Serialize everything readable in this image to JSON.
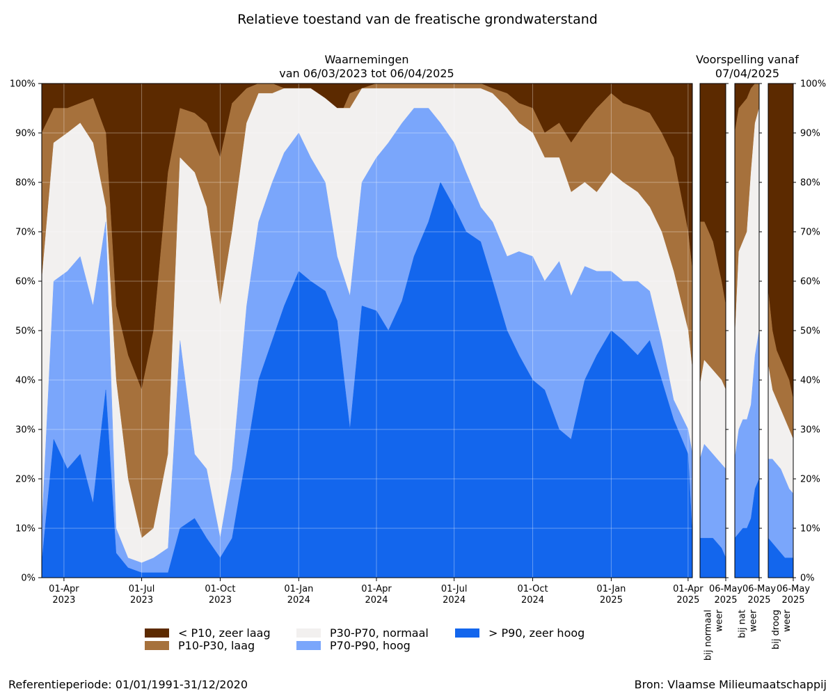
{
  "figure": {
    "title": "Relatieve toestand van de freatische grondwaterstand",
    "footer_left": "Referentieperiode: 01/01/1991-31/12/2020",
    "footer_right": "Bron: Vlaamse Milieumaatschappij"
  },
  "colors": {
    "zeer_laag": "#5c2a00",
    "laag": "#a6713c",
    "normaal": "#f2f0ef",
    "hoog": "#7aa6fb",
    "zeer_hoog": "#1366ed"
  },
  "legend": [
    {
      "key": "zeer_laag",
      "label": "< P10, zeer laag"
    },
    {
      "key": "laag",
      "label": "P10-P30, laag"
    },
    {
      "key": "normaal",
      "label": "P30-P70, normaal"
    },
    {
      "key": "hoog",
      "label": "P70-P90, hoog"
    },
    {
      "key": "zeer_hoog",
      "label": "> P90, zeer hoog"
    }
  ],
  "chart_data": [
    {
      "type": "area",
      "stacked": true,
      "subtitle_line1": "Waarnemingen",
      "subtitle_line2": "van 06/03/2023 tot 06/04/2025",
      "x_start": "2023-03-06",
      "x_end": "2025-04-06",
      "ylim": [
        0,
        100
      ],
      "y_ticks": [
        "0%",
        "10%",
        "20%",
        "30%",
        "40%",
        "50%",
        "60%",
        "70%",
        "80%",
        "90%",
        "100%"
      ],
      "x_ticks": [
        {
          "date": "2023-04-01",
          "line1": "01-Apr",
          "line2": "2023"
        },
        {
          "date": "2023-07-01",
          "line1": "01-Jul",
          "line2": "2023"
        },
        {
          "date": "2023-10-01",
          "line1": "01-Oct",
          "line2": "2023"
        },
        {
          "date": "2024-01-01",
          "line1": "01-Jan",
          "line2": "2024"
        },
        {
          "date": "2024-04-01",
          "line1": "01-Apr",
          "line2": "2024"
        },
        {
          "date": "2024-07-01",
          "line1": "01-Jul",
          "line2": "2024"
        },
        {
          "date": "2024-10-01",
          "line1": "01-Oct",
          "line2": "2024"
        },
        {
          "date": "2025-01-01",
          "line1": "01-Jan",
          "line2": "2025"
        },
        {
          "date": "2025-04-01",
          "line1": "01-Apr",
          "line2": "2025"
        }
      ],
      "grid": true,
      "series_keys": [
        "zeer_hoog",
        "hoog",
        "normaal",
        "laag",
        "zeer_laag"
      ],
      "cumulative_note": "values are cumulative percentages from bottom: >P90, +P70-P90, +P30-P70, +P10-P30 (remainder to 100 is <P10)",
      "dates": [
        "2023-03-06",
        "2023-03-20",
        "2023-04-05",
        "2023-04-20",
        "2023-05-05",
        "2023-05-20",
        "2023-06-01",
        "2023-06-15",
        "2023-07-01",
        "2023-07-15",
        "2023-08-01",
        "2023-08-15",
        "2023-09-01",
        "2023-09-15",
        "2023-10-01",
        "2023-10-15",
        "2023-11-01",
        "2023-11-15",
        "2023-12-01",
        "2023-12-15",
        "2024-01-01",
        "2024-01-15",
        "2024-02-01",
        "2024-02-15",
        "2024-03-01",
        "2024-03-15",
        "2024-04-01",
        "2024-04-15",
        "2024-05-01",
        "2024-05-15",
        "2024-06-01",
        "2024-06-15",
        "2024-07-01",
        "2024-07-15",
        "2024-08-01",
        "2024-08-15",
        "2024-09-01",
        "2024-09-15",
        "2024-10-01",
        "2024-10-15",
        "2024-11-01",
        "2024-11-15",
        "2024-12-01",
        "2024-12-15",
        "2025-01-01",
        "2025-01-15",
        "2025-02-01",
        "2025-02-15",
        "2025-03-01",
        "2025-03-15",
        "2025-04-01",
        "2025-04-06"
      ],
      "cum_p90": [
        3,
        28,
        22,
        25,
        15,
        38,
        5,
        2,
        1,
        1,
        1,
        10,
        12,
        8,
        4,
        8,
        25,
        40,
        48,
        55,
        62,
        60,
        58,
        52,
        30,
        55,
        54,
        50,
        56,
        65,
        72,
        80,
        75,
        70,
        68,
        60,
        50,
        45,
        40,
        38,
        30,
        28,
        40,
        45,
        50,
        48,
        45,
        48,
        40,
        32,
        25,
        8
      ],
      "cum_p70": [
        10,
        60,
        62,
        65,
        55,
        72,
        10,
        4,
        3,
        4,
        6,
        48,
        25,
        22,
        8,
        22,
        55,
        72,
        80,
        86,
        90,
        85,
        80,
        65,
        57,
        80,
        85,
        88,
        92,
        95,
        95,
        92,
        88,
        82,
        75,
        72,
        65,
        66,
        65,
        60,
        64,
        57,
        63,
        62,
        62,
        60,
        60,
        58,
        48,
        36,
        30,
        25
      ],
      "cum_p30": [
        60,
        88,
        90,
        92,
        88,
        75,
        40,
        20,
        8,
        10,
        25,
        85,
        82,
        75,
        55,
        70,
        92,
        98,
        98,
        99,
        99,
        99,
        97,
        95,
        95,
        99,
        99,
        99,
        99,
        99,
        99,
        99,
        99,
        99,
        99,
        98,
        95,
        92,
        90,
        85,
        85,
        78,
        80,
        78,
        82,
        80,
        78,
        75,
        70,
        62,
        50,
        42
      ],
      "cum_p10": [
        90,
        95,
        95,
        96,
        97,
        90,
        55,
        45,
        38,
        50,
        82,
        95,
        94,
        92,
        85,
        96,
        99,
        100,
        100,
        99,
        98,
        98,
        97,
        92,
        98,
        99,
        100,
        100,
        100,
        100,
        100,
        100,
        100,
        100,
        100,
        99,
        98,
        96,
        95,
        90,
        92,
        88,
        92,
        95,
        98,
        96,
        95,
        94,
        90,
        85,
        70,
        62
      ]
    },
    {
      "type": "area",
      "stacked": true,
      "group_title_line1": "Voorspelling vanaf",
      "group_title_line2": "07/04/2025",
      "ylim": [
        0,
        100
      ],
      "panels": [
        {
          "name": "bij normaal weer",
          "x_tick_line1": "06-May",
          "x_tick_line2": "2025",
          "cum_p90": [
            8,
            8,
            8,
            8,
            7,
            6,
            4
          ],
          "cum_p70": [
            24,
            27,
            26,
            25,
            24,
            23,
            22
          ],
          "cum_p30": [
            39,
            44,
            43,
            42,
            41,
            40,
            38
          ],
          "cum_p10": [
            72,
            72,
            70,
            68,
            64,
            60,
            55
          ]
        },
        {
          "name": "bij nat weer",
          "x_tick_line1": "06-May",
          "x_tick_line2": "2025",
          "cum_p90": [
            8,
            9,
            10,
            10,
            12,
            18,
            20
          ],
          "cum_p70": [
            24,
            30,
            32,
            32,
            35,
            45,
            50
          ],
          "cum_p30": [
            48,
            66,
            68,
            70,
            82,
            92,
            95
          ],
          "cum_p10": [
            90,
            95,
            96,
            97,
            99,
            100,
            100
          ]
        },
        {
          "name": "bij droog weer",
          "x_tick_line1": "06-May",
          "x_tick_line2": "2025",
          "cum_p90": [
            8,
            7,
            6,
            5,
            4,
            4,
            4
          ],
          "cum_p70": [
            24,
            24,
            23,
            22,
            20,
            18,
            17
          ],
          "cum_p30": [
            43,
            38,
            36,
            34,
            32,
            30,
            28
          ],
          "cum_p10": [
            58,
            50,
            46,
            44,
            42,
            40,
            36
          ]
        }
      ]
    }
  ]
}
